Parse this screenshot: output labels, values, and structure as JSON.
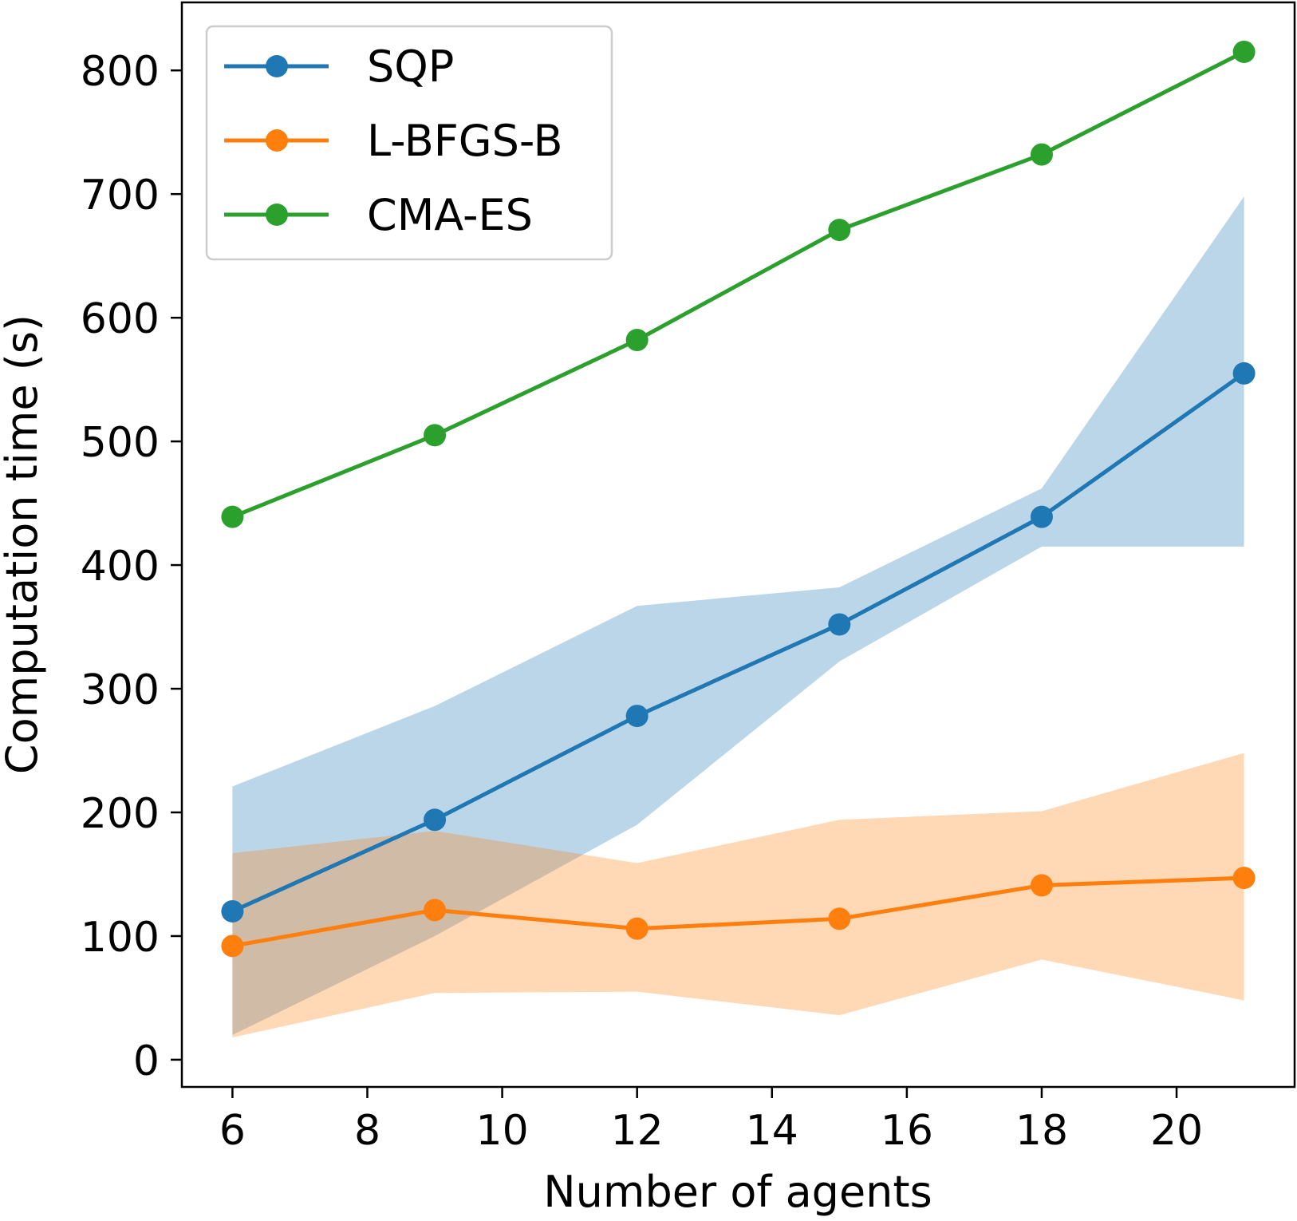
{
  "chart_data": {
    "type": "line",
    "title": "",
    "xlabel": "Number of agents",
    "ylabel": "Computation time (s)",
    "xlim": [
      5.25,
      21.75
    ],
    "ylim": [
      -22,
      855
    ],
    "xticks": [
      6,
      8,
      10,
      12,
      14,
      16,
      18,
      20
    ],
    "yticks": [
      0,
      100,
      200,
      300,
      400,
      500,
      600,
      700,
      800
    ],
    "x": [
      6,
      9,
      12,
      15,
      18,
      21
    ],
    "series": [
      {
        "name": "SQP",
        "color": "#1f77b4",
        "band_color": "#a6c8e3",
        "values": [
          120,
          194,
          278,
          352,
          439,
          555
        ],
        "lower": [
          20,
          100,
          190,
          322,
          415,
          415
        ],
        "upper": [
          221,
          286,
          367,
          382,
          462,
          698
        ]
      },
      {
        "name": "L-BFGS-B",
        "color": "#ff7f0e",
        "band_color": "#ffcc9f",
        "values": [
          92,
          121,
          106,
          114,
          141,
          147
        ],
        "lower": [
          18,
          54,
          55,
          36,
          81,
          48
        ],
        "upper": [
          167,
          185,
          159,
          194,
          201,
          248
        ]
      },
      {
        "name": "CMA-ES",
        "color": "#2ca02c",
        "band_color": "#98d898",
        "values": [
          439,
          505,
          582,
          671,
          732,
          815
        ],
        "lower": [
          439,
          505,
          582,
          671,
          732,
          815
        ],
        "upper": [
          439,
          505,
          582,
          671,
          732,
          815
        ]
      }
    ],
    "legend_position": "top-left",
    "grid": false
  }
}
